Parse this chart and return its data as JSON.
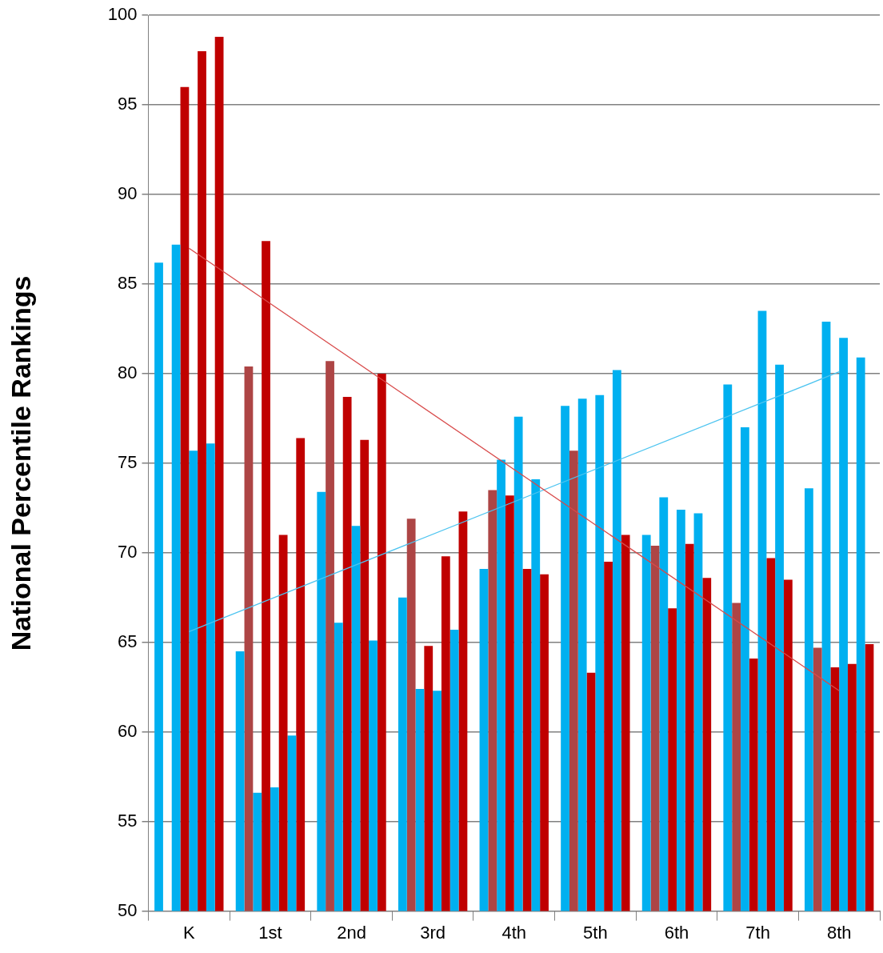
{
  "chart_data": {
    "type": "bar",
    "ylabel": "National Percentile Rankings",
    "categories": [
      "K",
      "1st",
      "2nd",
      "3rd",
      "4th",
      "5th",
      "6th",
      "7th",
      "8th"
    ],
    "series": [
      {
        "color": "#00b0f0",
        "values": [
          86.2,
          64.5,
          73.4,
          67.5,
          69.1,
          78.2,
          71.0,
          79.4,
          73.6
        ]
      },
      {
        "color": "#ad4545",
        "values": [
          null,
          80.4,
          80.7,
          71.9,
          73.5,
          75.7,
          70.4,
          67.2,
          64.7
        ]
      },
      {
        "color": "#00b0f0",
        "values": [
          87.2,
          56.6,
          66.1,
          62.4,
          75.2,
          78.6,
          73.1,
          77.0,
          82.9
        ]
      },
      {
        "color": "#c00000",
        "values": [
          96.0,
          87.4,
          78.7,
          64.8,
          73.2,
          63.3,
          66.9,
          64.1,
          63.6
        ]
      },
      {
        "color": "#00b0f0",
        "values": [
          75.7,
          56.9,
          71.5,
          62.3,
          77.6,
          78.8,
          72.4,
          83.5,
          82.0
        ]
      },
      {
        "color": "#c00000",
        "values": [
          98.0,
          71.0,
          76.3,
          69.8,
          69.1,
          69.5,
          70.5,
          69.7,
          63.8
        ]
      },
      {
        "color": "#00b0f0",
        "values": [
          76.1,
          59.8,
          65.1,
          65.7,
          74.1,
          80.2,
          72.2,
          80.5,
          80.9
        ]
      },
      {
        "color": "#c00000",
        "values": [
          98.8,
          76.4,
          80.0,
          72.3,
          68.8,
          71.0,
          68.6,
          68.5,
          64.9
        ]
      },
      {
        "type": "line",
        "color": "#d84a4a",
        "x": [
          "K",
          "8th"
        ],
        "values": [
          87.0,
          62.3
        ]
      },
      {
        "type": "line",
        "color": "#4cc4f0",
        "x": [
          "K",
          "8th"
        ],
        "values": [
          65.6,
          80.1
        ]
      }
    ],
    "ylim": [
      50,
      100
    ],
    "yticks": [
      50,
      55,
      60,
      65,
      70,
      75,
      80,
      85,
      90,
      95,
      100
    ],
    "grid": "y",
    "legend": false
  }
}
